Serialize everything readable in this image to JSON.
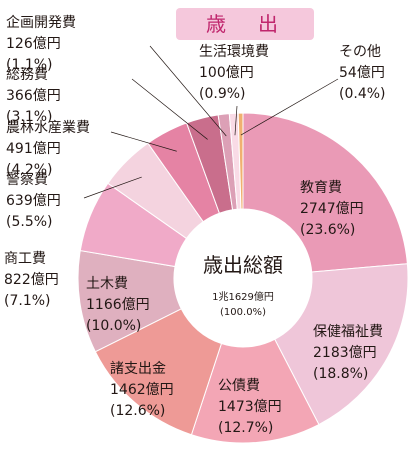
{
  "title": "歳　出",
  "chart_data": {
    "type": "pie",
    "title": "歳　出",
    "center": {
      "label": "歳出総額",
      "total": "1兆1629億円",
      "total_pct": "(100.0%)"
    },
    "unit": "億円",
    "slices": [
      {
        "name": "教育費",
        "value": 2747,
        "value_label": "2747億円",
        "percent": "(23.6%)",
        "color": "#ea9ab6"
      },
      {
        "name": "保健福祉費",
        "value": 2183,
        "value_label": "2183億円",
        "percent": "(18.8%)",
        "color": "#efc6d9"
      },
      {
        "name": "公債費",
        "value": 1473,
        "value_label": "1473億円",
        "percent": "(12.7%)",
        "color": "#f3a6b5"
      },
      {
        "name": "諸支出金",
        "value": 1462,
        "value_label": "1462億円",
        "percent": "(12.6%)",
        "color": "#ee9a96"
      },
      {
        "name": "土木費",
        "value": 1166,
        "value_label": "1166億円",
        "percent": "(10.0%)",
        "color": "#dfb0bf"
      },
      {
        "name": "商工費",
        "value": 822,
        "value_label": "822億円",
        "percent": "(7.1%)",
        "color": "#f0aac8"
      },
      {
        "name": "警察費",
        "value": 639,
        "value_label": "639億円",
        "percent": "(5.5%)",
        "color": "#f4d3df"
      },
      {
        "name": "農林水産業費",
        "value": 491,
        "value_label": "491億円",
        "percent": "(4.2%)",
        "color": "#e583a4"
      },
      {
        "name": "総務費",
        "value": 366,
        "value_label": "366億円",
        "percent": "(3.1%)",
        "color": "#c96e8c"
      },
      {
        "name": "企画開発費",
        "value": 126,
        "value_label": "126億円",
        "percent": "(1.1%)",
        "color": "#dca0b6"
      },
      {
        "name": "生活環境費",
        "value": 100,
        "value_label": "100億円",
        "percent": "(0.9%)",
        "color": "#f9dbe6"
      },
      {
        "name": "その他",
        "value": 54,
        "value_label": "54億円",
        "percent": "(0.4%)",
        "color": "#f0b070"
      }
    ]
  }
}
